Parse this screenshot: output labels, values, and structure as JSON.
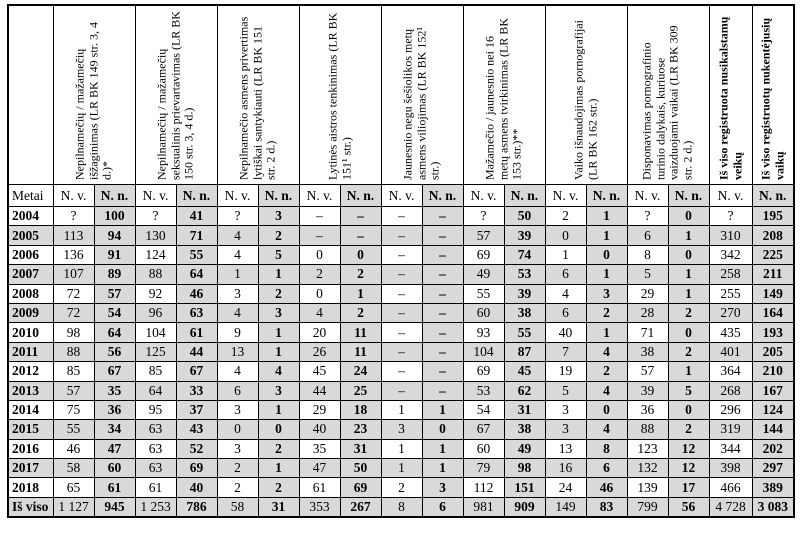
{
  "colors": {
    "shade": "#d9d9d9",
    "border": "#000000",
    "background": "#ffffff"
  },
  "table": {
    "metai_label": "Metai",
    "nv_label": "N. v.",
    "nn_label": "N. n.",
    "columns": [
      {
        "label": "Nepilnamečių / mažamečių išžaginimas (LR BK 149 str. 3, 4 d.)*"
      },
      {
        "label": "Nepilnamečių / mažamečių seksualinis prievartavimas (LR BK 150 str. 3, 4 d.)"
      },
      {
        "label": "Nepilnamečio asmens privertimas lytiškai santykiauti (LR BK 151 str. 2 d.)"
      },
      {
        "label": "Lytinės aistros tenkinimas (LR BK 151¹ str.)"
      },
      {
        "label": "Jaunesnio negu šešiolikos metų asmens viliojimas (LR BK 152¹ str.)"
      },
      {
        "label": "Mažamečio / jaunesnio nei 16 metų asmens tvirkinimas (LR BK 153 str.)**"
      },
      {
        "label": "Vaiko išnaudojimas pornografijai (LR BK 162 str.)"
      },
      {
        "label": "Disponavimas pornografinio turinio dalykais, kuriuose vaizduojami vaikai (LR BK 309 str. 2 d.)"
      }
    ],
    "total_columns": [
      {
        "label": "Iš viso registruota nusikalstamų veikų",
        "sub": "N. v."
      },
      {
        "label": "Iš viso registruotų nukentėjusių vaikų",
        "sub": "N. n."
      }
    ],
    "rows": [
      {
        "year": "2004",
        "values": [
          "?",
          "100",
          "?",
          "41",
          "?",
          "3",
          "–",
          "–",
          "–",
          "–",
          "?",
          "50",
          "2",
          "1",
          "?",
          "0",
          "?",
          "195"
        ]
      },
      {
        "year": "2005",
        "values": [
          "113",
          "94",
          "130",
          "71",
          "4",
          "2",
          "–",
          "–",
          "–",
          "–",
          "57",
          "39",
          "0",
          "1",
          "6",
          "1",
          "310",
          "208"
        ]
      },
      {
        "year": "2006",
        "values": [
          "136",
          "91",
          "124",
          "55",
          "4",
          "5",
          "0",
          "0",
          "–",
          "–",
          "69",
          "74",
          "1",
          "0",
          "8",
          "0",
          "342",
          "225"
        ]
      },
      {
        "year": "2007",
        "values": [
          "107",
          "89",
          "88",
          "64",
          "1",
          "1",
          "2",
          "2",
          "–",
          "–",
          "49",
          "53",
          "6",
          "1",
          "5",
          "1",
          "258",
          "211"
        ]
      },
      {
        "year": "2008",
        "values": [
          "72",
          "57",
          "92",
          "46",
          "3",
          "2",
          "0",
          "1",
          "–",
          "–",
          "55",
          "39",
          "4",
          "3",
          "29",
          "1",
          "255",
          "149"
        ]
      },
      {
        "year": "2009",
        "values": [
          "72",
          "54",
          "96",
          "63",
          "4",
          "3",
          "4",
          "2",
          "–",
          "–",
          "60",
          "38",
          "6",
          "2",
          "28",
          "2",
          "270",
          "164"
        ]
      },
      {
        "year": "2010",
        "values": [
          "98",
          "64",
          "104",
          "61",
          "9",
          "1",
          "20",
          "11",
          "–",
          "–",
          "93",
          "55",
          "40",
          "1",
          "71",
          "0",
          "435",
          "193"
        ]
      },
      {
        "year": "2011",
        "values": [
          "88",
          "56",
          "125",
          "44",
          "13",
          "1",
          "26",
          "11",
          "–",
          "–",
          "104",
          "87",
          "7",
          "4",
          "38",
          "2",
          "401",
          "205"
        ]
      },
      {
        "year": "2012",
        "values": [
          "85",
          "67",
          "85",
          "67",
          "4",
          "4",
          "45",
          "24",
          "–",
          "–",
          "69",
          "45",
          "19",
          "2",
          "57",
          "1",
          "364",
          "210"
        ]
      },
      {
        "year": "2013",
        "values": [
          "57",
          "35",
          "64",
          "33",
          "6",
          "3",
          "44",
          "25",
          "–",
          "–",
          "53",
          "62",
          "5",
          "4",
          "39",
          "5",
          "268",
          "167"
        ]
      },
      {
        "year": "2014",
        "values": [
          "75",
          "36",
          "95",
          "37",
          "3",
          "1",
          "29",
          "18",
          "1",
          "1",
          "54",
          "31",
          "3",
          "0",
          "36",
          "0",
          "296",
          "124"
        ]
      },
      {
        "year": "2015",
        "values": [
          "55",
          "34",
          "63",
          "43",
          "0",
          "0",
          "40",
          "23",
          "3",
          "0",
          "67",
          "38",
          "3",
          "4",
          "88",
          "2",
          "319",
          "144"
        ]
      },
      {
        "year": "2016",
        "values": [
          "46",
          "47",
          "63",
          "52",
          "3",
          "2",
          "35",
          "31",
          "1",
          "1",
          "60",
          "49",
          "13",
          "8",
          "123",
          "12",
          "344",
          "202"
        ]
      },
      {
        "year": "2017",
        "values": [
          "58",
          "60",
          "63",
          "69",
          "2",
          "1",
          "47",
          "50",
          "1",
          "1",
          "79",
          "98",
          "16",
          "6",
          "132",
          "12",
          "398",
          "297"
        ]
      },
      {
        "year": "2018",
        "values": [
          "65",
          "61",
          "61",
          "40",
          "2",
          "2",
          "61",
          "69",
          "2",
          "3",
          "112",
          "151",
          "24",
          "46",
          "139",
          "17",
          "466",
          "389"
        ]
      },
      {
        "year": "Iš viso",
        "values": [
          "1 127",
          "945",
          "1 253",
          "786",
          "58",
          "31",
          "353",
          "267",
          "8",
          "6",
          "981",
          "909",
          "149",
          "83",
          "799",
          "56",
          "4 728",
          "3 083"
        ]
      }
    ]
  }
}
